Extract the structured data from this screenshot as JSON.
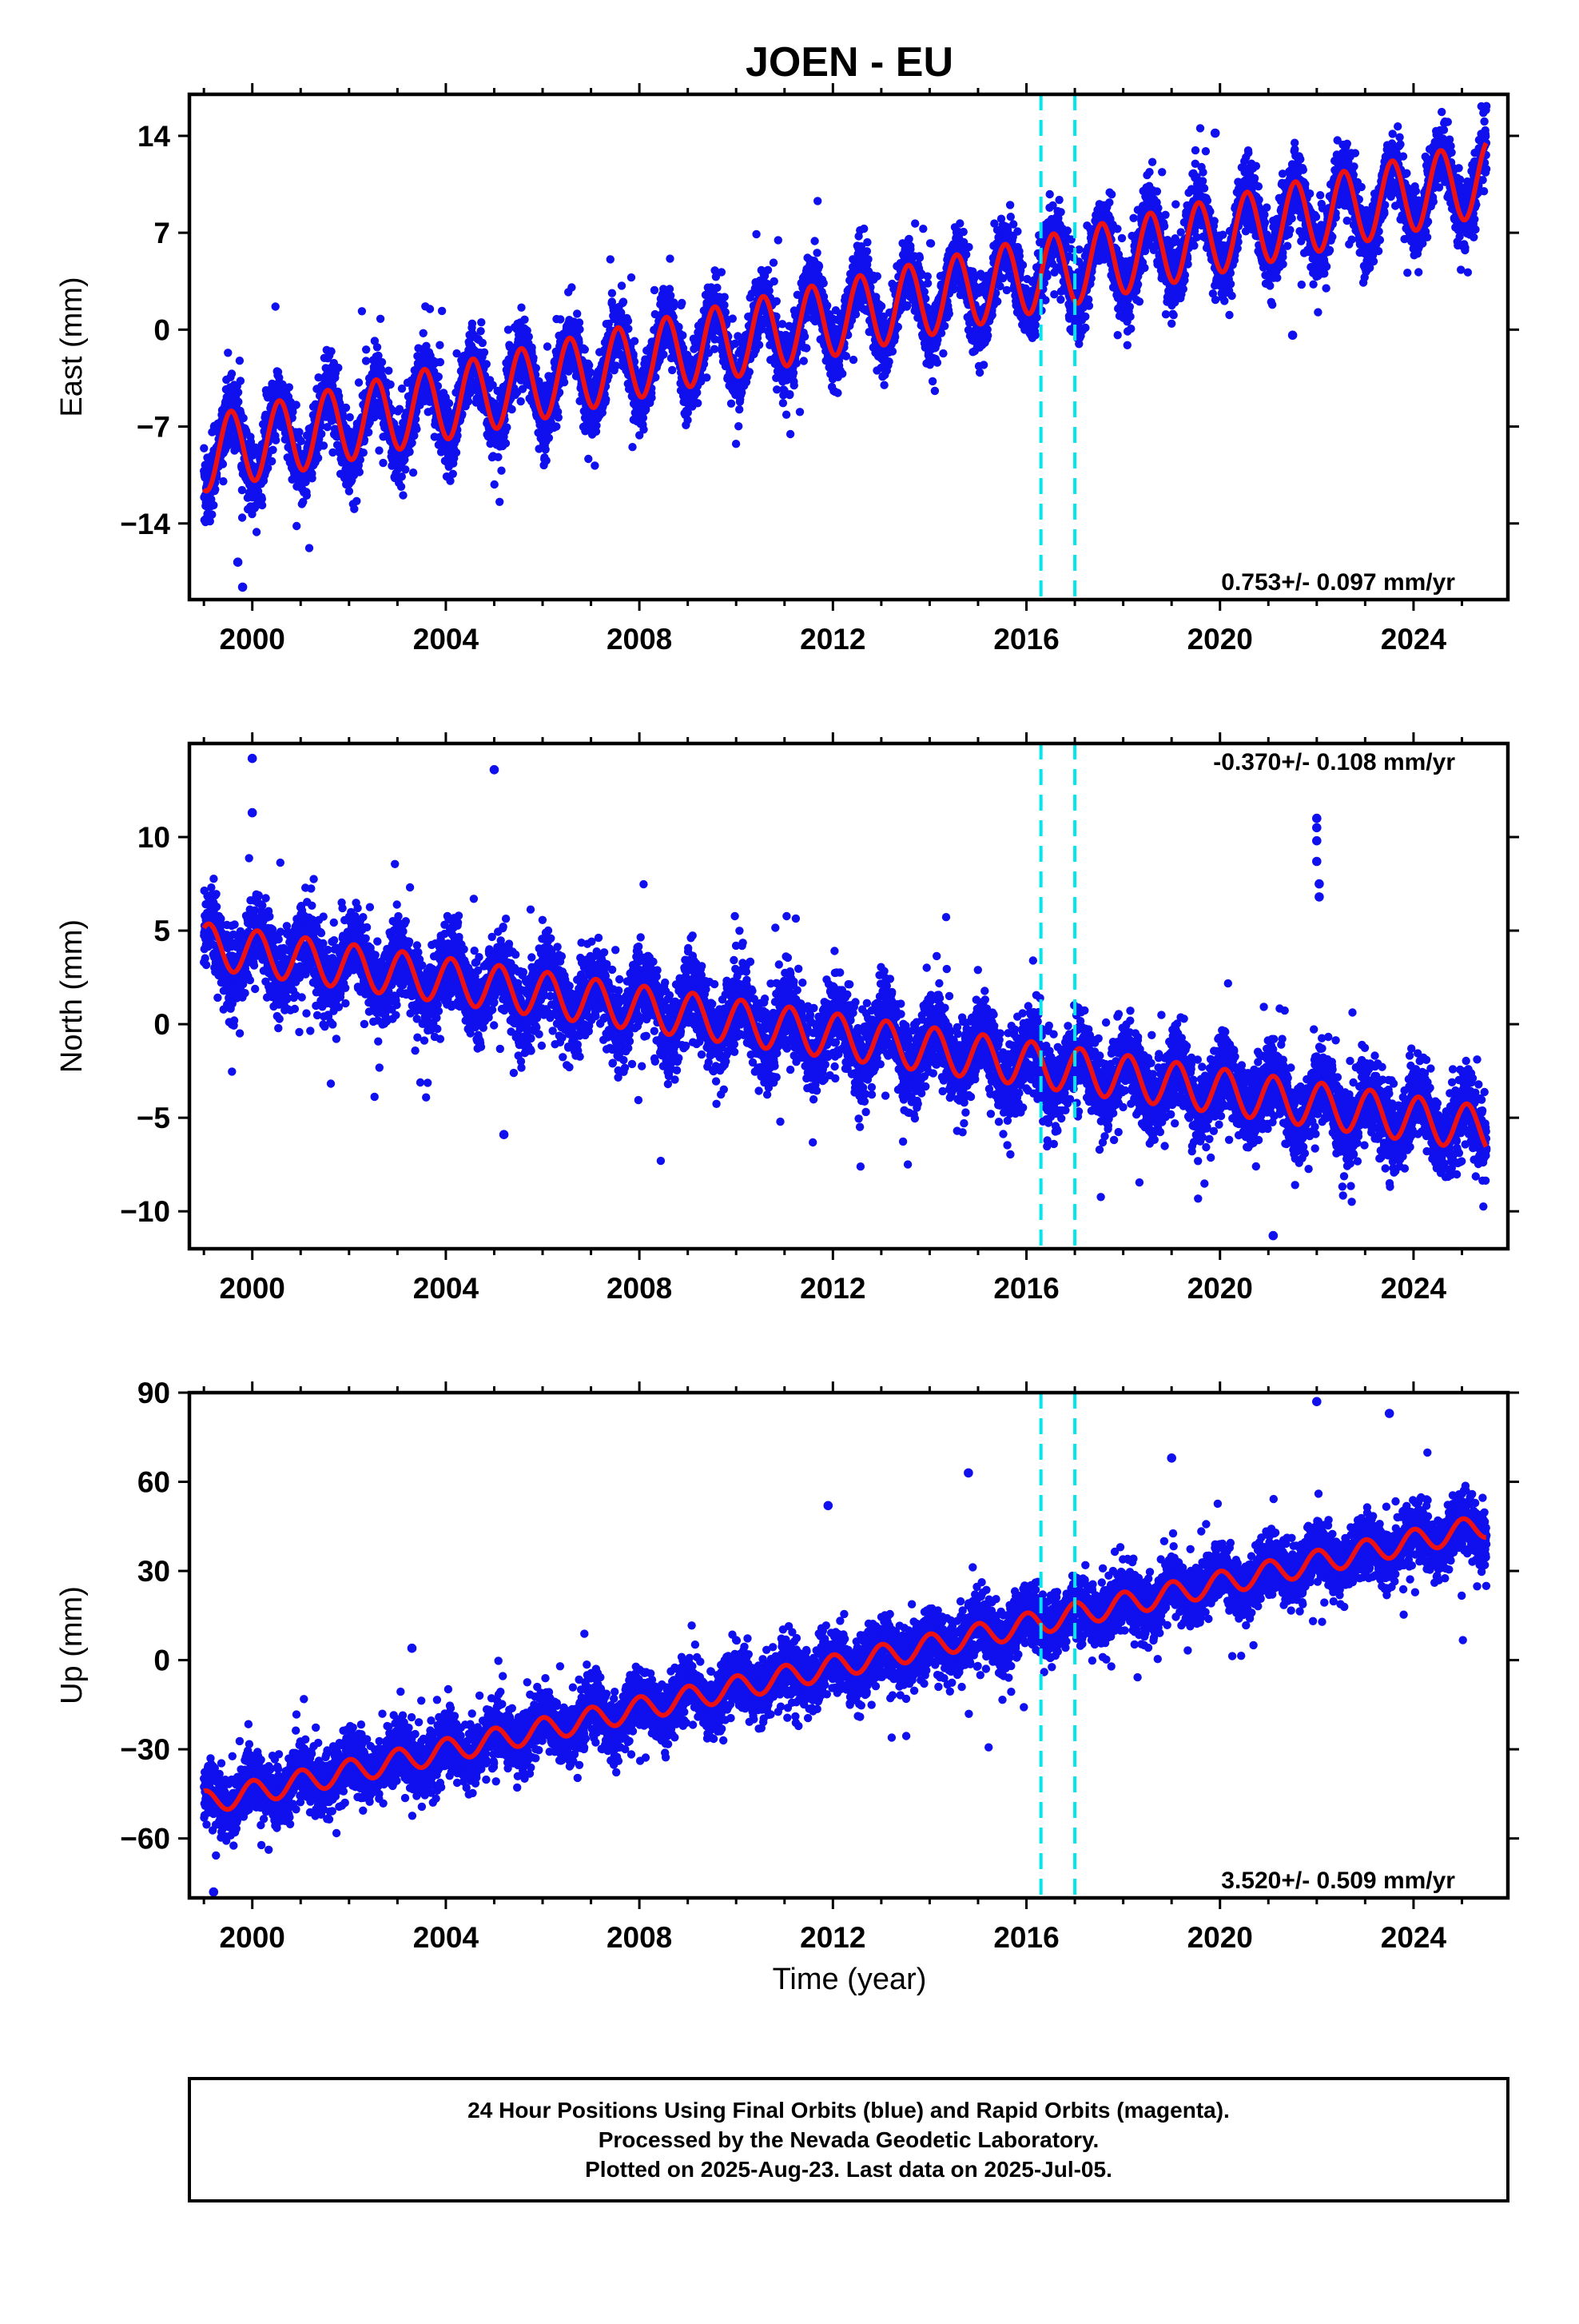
{
  "chart_title": "JOEN - EU",
  "xlabel": "Time (year)",
  "footer_lines": [
    "24 Hour Positions Using Final Orbits (blue) and Rapid Orbits (magenta).",
    "Processed by the Nevada Geodetic Laboratory.",
    "Plotted on 2025-Aug-23. Last data on 2025-Jul-05."
  ],
  "colors": {
    "points": "#1010ee",
    "model": "#ee1111",
    "marker_lines": "#00e8ee",
    "frame": "#000000"
  },
  "chart_data": [
    {
      "type": "scatter",
      "title": "JOEN - EU",
      "ylabel": "East (mm)",
      "xlabel": "",
      "xlim": [
        1998.7,
        2025.95
      ],
      "ylim": [
        -19.5,
        17
      ],
      "xticks": [
        2000,
        2004,
        2008,
        2012,
        2016,
        2020,
        2024
      ],
      "yticks": [
        -14,
        -7,
        0,
        7,
        14
      ],
      "ytick_labels": [
        "−14",
        "−7",
        "0",
        "7",
        "14"
      ],
      "rate_text": "0.753+/- 0.097 mm/yr",
      "rate_position": "bottom-right",
      "markers_x": [
        2016.3,
        2017.0
      ],
      "model": {
        "offset": -9.0,
        "trend": 0.753,
        "seasonal_amplitude": 2.7,
        "seasonal_phase": 4.35,
        "noise": 1.6
      },
      "outliers": [
        [
          1999.8,
          -18.6
        ],
        [
          1999.7,
          -16.8
        ],
        [
          2021.5,
          -0.4
        ],
        [
          2019.9,
          14.2
        ]
      ]
    },
    {
      "type": "scatter",
      "title": "",
      "ylabel": "North (mm)",
      "xlabel": "",
      "xlim": [
        1998.7,
        2025.95
      ],
      "ylim": [
        -12,
        15
      ],
      "xticks": [
        2000,
        2004,
        2008,
        2012,
        2016,
        2020,
        2024
      ],
      "yticks": [
        -10,
        -5,
        0,
        5,
        10
      ],
      "ytick_labels": [
        "−10",
        "−5",
        "0",
        "5",
        "10"
      ],
      "rate_text": "-0.370+/- 0.108 mm/yr",
      "rate_position": "top-right",
      "markers_x": [
        2016.3,
        2017.0
      ],
      "model": {
        "offset": 4.2,
        "trend": -0.37,
        "seasonal_amplitude": 1.2,
        "seasonal_phase": 0.9,
        "noise": 1.4
      },
      "outliers": [
        [
          2000.0,
          14.2
        ],
        [
          2000.0,
          11.3
        ],
        [
          2005.0,
          13.6
        ],
        [
          2005.2,
          -5.9
        ],
        [
          2021.1,
          -11.3
        ],
        [
          2022.0,
          11.0
        ],
        [
          2022.0,
          10.5
        ],
        [
          2022.0,
          9.8
        ],
        [
          2022.0,
          8.7
        ],
        [
          2022.05,
          7.5
        ],
        [
          2022.05,
          6.8
        ]
      ]
    },
    {
      "type": "scatter",
      "title": "",
      "ylabel": "Up (mm)",
      "xlabel": "Time (year)",
      "xlim": [
        1998.7,
        2025.95
      ],
      "ylim": [
        -80,
        90
      ],
      "xticks": [
        2000,
        2004,
        2008,
        2012,
        2016,
        2020,
        2024
      ],
      "yticks": [
        -60,
        -30,
        0,
        30,
        60,
        90
      ],
      "ytick_labels": [
        "−60",
        "−30",
        "0",
        "30",
        "60",
        "90"
      ],
      "rate_text": "3.520+/- 0.509 mm/yr",
      "rate_position": "bottom-right",
      "markers_x": [
        2016.3,
        2017.0
      ],
      "model": {
        "offset": -48.0,
        "trend": 3.52,
        "seasonal_amplitude": 4.0,
        "seasonal_phase": 1.5,
        "noise": 6.5
      },
      "outliers": [
        [
          1999.2,
          -78
        ],
        [
          2003.3,
          4
        ],
        [
          2011.9,
          52
        ],
        [
          2014.8,
          63
        ],
        [
          2019.0,
          68
        ],
        [
          2022.0,
          87
        ],
        [
          2023.5,
          83
        ]
      ]
    }
  ]
}
